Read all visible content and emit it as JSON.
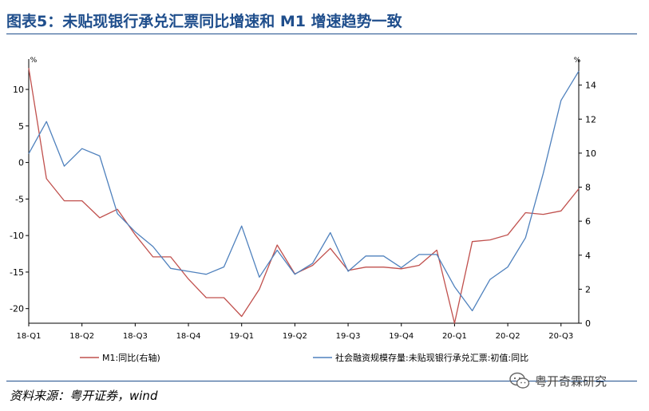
{
  "header": {
    "title": "图表5：未贴现银行承兑汇票同比增速和 M1 增速趋势一致"
  },
  "footer": {
    "source": "资料来源：粤开证券，wind"
  },
  "watermark": {
    "text": "粤开奇霖研究"
  },
  "colors": {
    "title": "#1f4e8c",
    "m1": "#c0504d",
    "bill": "#4f81bd"
  },
  "chart_data": {
    "type": "line",
    "title": "",
    "x_tick_labels": [
      "18-Q1",
      "18-Q2",
      "18-Q3",
      "18-Q4",
      "19-Q1",
      "19-Q2",
      "19-Q3",
      "19-Q4",
      "20-Q1",
      "20-Q2",
      "20-Q3"
    ],
    "left_axis": {
      "unit": "%",
      "ylim": [
        -22,
        13.5
      ],
      "ticks": [
        10,
        5,
        0,
        -5,
        -10,
        -15,
        -20
      ]
    },
    "right_axis": {
      "unit": "%",
      "ylim": [
        0,
        15.25
      ],
      "ticks": [
        14,
        12,
        10,
        8,
        6,
        4,
        2,
        0
      ]
    },
    "grid": false,
    "legend_position": "bottom",
    "series": [
      {
        "name": "M1:同比(右轴)",
        "axis": "right",
        "color": "#c0504d",
        "values": [
          15.0,
          8.5,
          7.2,
          7.2,
          6.2,
          6.7,
          5.2,
          3.9,
          3.9,
          2.6,
          1.5,
          1.5,
          0.4,
          2.0,
          4.6,
          2.9,
          3.4,
          4.4,
          3.1,
          3.3,
          3.3,
          3.2,
          3.4,
          4.3,
          0.0,
          4.8,
          4.9,
          5.2,
          6.5,
          6.4,
          6.6,
          7.9
        ]
      },
      {
        "name": "社会融资规模存量:未贴现银行承兑汇票:初值:同比",
        "axis": "left",
        "color": "#4f81bd",
        "values": [
          1.2,
          5.6,
          -0.5,
          1.9,
          0.9,
          -7.0,
          -9.5,
          -11.5,
          -14.5,
          -14.9,
          -15.3,
          -14.3,
          -8.7,
          -15.7,
          -12.0,
          -15.3,
          -13.8,
          -9.6,
          -14.9,
          -12.8,
          -12.8,
          -14.4,
          -12.6,
          -12.6,
          -17.0,
          -20.3,
          -16.0,
          -14.3,
          -10.3,
          -1.5,
          8.5,
          12.5
        ]
      }
    ]
  }
}
